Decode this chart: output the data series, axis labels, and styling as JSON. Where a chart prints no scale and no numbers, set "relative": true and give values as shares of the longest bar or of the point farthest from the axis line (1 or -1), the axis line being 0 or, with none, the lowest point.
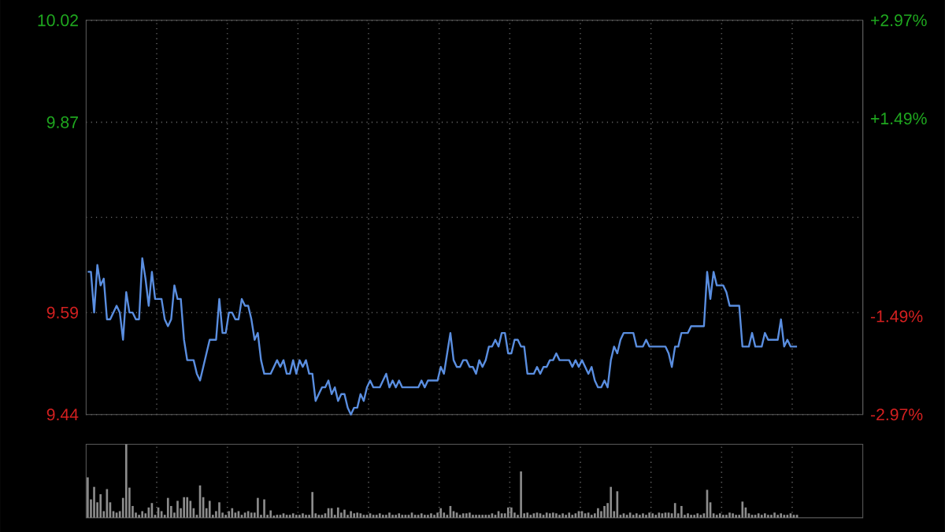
{
  "chart_data": [
    {
      "type": "line",
      "ylim": [
        9.44,
        10.02
      ],
      "y2lim": [
        -2.97,
        2.97
      ],
      "grid": true,
      "yticks": [
        9.44,
        9.59,
        {
          "value": 9.73,
          "label": null
        },
        9.87,
        10.02
      ],
      "y2ticks": [
        {
          "value": -2.97,
          "label": "-2.97%"
        },
        {
          "value": -1.49,
          "label": "-1.49%"
        },
        {
          "value": 1.49,
          "label": "+1.49%"
        },
        {
          "value": 2.97,
          "label": "+2.97%"
        }
      ],
      "categories": [
        null,
        null,
        null,
        null,
        null,
        null,
        null,
        null,
        null,
        null,
        null,
        null,
        null,
        null,
        null,
        null,
        null,
        null,
        null,
        null,
        null,
        null,
        null,
        null,
        null,
        null,
        null,
        null,
        null,
        null,
        null,
        null,
        null,
        null,
        null,
        null,
        null,
        null,
        null,
        null,
        null,
        null,
        null,
        null,
        null,
        null,
        null,
        null,
        null,
        null,
        null,
        null,
        null,
        null,
        null,
        null,
        null,
        null,
        null,
        null,
        null,
        null,
        null,
        null,
        null,
        null,
        null,
        null,
        null,
        null,
        null,
        null,
        null,
        null,
        null,
        null,
        null,
        null,
        null,
        null,
        null,
        null,
        null,
        null,
        null,
        null,
        null,
        null,
        null,
        null,
        null,
        null,
        null,
        null,
        null,
        null,
        null,
        null,
        null,
        null,
        null,
        null,
        null,
        null,
        null,
        null,
        null,
        null,
        null,
        null,
        null,
        null,
        null,
        null,
        null,
        null,
        null,
        null,
        null,
        null,
        null,
        null,
        null,
        null,
        null,
        null,
        null,
        null,
        null,
        null,
        null,
        null,
        null,
        null,
        null,
        null,
        null,
        null,
        null,
        null,
        null,
        null,
        null,
        null,
        null,
        null,
        null,
        null,
        null,
        null,
        null,
        null,
        null,
        null,
        null,
        null,
        null,
        null,
        null,
        null,
        null,
        null,
        null,
        null,
        null,
        null,
        null,
        null,
        null,
        null,
        null,
        null,
        null,
        null,
        null,
        null,
        null,
        null,
        null,
        null,
        null,
        null,
        null,
        null,
        null,
        null,
        null,
        null,
        null,
        null,
        null,
        null,
        null,
        null,
        null,
        null,
        null,
        null,
        null,
        null,
        null,
        null,
        null,
        null,
        null,
        null,
        null,
        null,
        null,
        null,
        null,
        null,
        null,
        null,
        null,
        null,
        null,
        null,
        null,
        null,
        null,
        null,
        null,
        null,
        null,
        null,
        null,
        null,
        null,
        null,
        null,
        null,
        null,
        null,
        null,
        null,
        null,
        null,
        null,
        null,
        null,
        null
      ],
      "series": [
        {
          "color": "#5a8ee0",
          "values": [
            9.65,
            9.65,
            9.59,
            9.66,
            9.63,
            9.64,
            9.58,
            9.58,
            9.59,
            9.6,
            9.59,
            9.55,
            9.62,
            9.59,
            9.59,
            9.58,
            9.58,
            9.67,
            9.64,
            9.6,
            9.65,
            9.61,
            9.61,
            9.61,
            9.58,
            9.57,
            9.58,
            9.63,
            9.61,
            9.61,
            9.55,
            9.52,
            9.52,
            9.52,
            9.5,
            9.49,
            9.51,
            9.53,
            9.55,
            9.55,
            9.55,
            9.61,
            9.56,
            9.56,
            9.59,
            9.59,
            9.58,
            9.58,
            9.61,
            9.6,
            9.6,
            9.58,
            9.55,
            9.56,
            9.52,
            9.5,
            9.5,
            9.5,
            9.51,
            9.52,
            9.51,
            9.52,
            9.5,
            9.5,
            9.52,
            9.5,
            9.52,
            9.51,
            9.52,
            9.5,
            9.5,
            9.46,
            9.47,
            9.48,
            9.48,
            9.49,
            9.47,
            9.48,
            9.46,
            9.47,
            9.47,
            9.45,
            9.44,
            9.45,
            9.45,
            9.47,
            9.46,
            9.48,
            9.49,
            9.48,
            9.48,
            9.48,
            9.49,
            9.5,
            9.48,
            9.49,
            9.48,
            9.49,
            9.48,
            9.48,
            9.48,
            9.48,
            9.48,
            9.48,
            9.49,
            9.48,
            9.49,
            9.49,
            9.49,
            9.49,
            9.51,
            9.5,
            9.53,
            9.56,
            9.52,
            9.51,
            9.51,
            9.52,
            9.52,
            9.51,
            9.51,
            9.5,
            9.52,
            9.51,
            9.52,
            9.54,
            9.54,
            9.55,
            9.54,
            9.56,
            9.56,
            9.53,
            9.53,
            9.55,
            9.55,
            9.54,
            9.54,
            9.5,
            9.5,
            9.5,
            9.51,
            9.5,
            9.51,
            9.51,
            9.52,
            9.52,
            9.53,
            9.52,
            9.52,
            9.52,
            9.52,
            9.51,
            9.52,
            9.51,
            9.52,
            9.51,
            9.5,
            9.51,
            9.49,
            9.48,
            9.48,
            9.49,
            9.48,
            9.52,
            9.54,
            9.53,
            9.55,
            9.56,
            9.56,
            9.56,
            9.56,
            9.54,
            9.54,
            9.54,
            9.55,
            9.54,
            9.54,
            9.54,
            9.54,
            9.54,
            9.54,
            9.53,
            9.51,
            9.54,
            9.54,
            9.56,
            9.56,
            9.56,
            9.57,
            9.57,
            9.57,
            9.57,
            9.57,
            9.65,
            9.61,
            9.65,
            9.63,
            9.63,
            9.63,
            9.62,
            9.6,
            9.6,
            9.6,
            9.6,
            9.54,
            9.54,
            9.54,
            9.56,
            9.54,
            9.54,
            9.54,
            9.56,
            9.55,
            9.55,
            9.55,
            9.55,
            9.58,
            9.54,
            9.55,
            9.54,
            9.54,
            9.54,
            null,
            null,
            null,
            null,
            null,
            null,
            null,
            null,
            null,
            null,
            null,
            null,
            null,
            null,
            null,
            null,
            null,
            null,
            null,
            null
          ]
        }
      ]
    },
    {
      "type": "bar",
      "relative": true,
      "color": "#8c8c8c",
      "grid": "x",
      "categories": [
        null,
        null,
        null,
        null,
        null,
        null,
        null,
        null,
        null,
        null,
        null,
        null,
        null,
        null,
        null,
        null,
        null,
        null,
        null,
        null,
        null,
        null,
        null,
        null,
        null,
        null,
        null,
        null,
        null,
        null,
        null,
        null,
        null,
        null,
        null,
        null,
        null,
        null,
        null,
        null,
        null,
        null,
        null,
        null,
        null,
        null,
        null,
        null,
        null,
        null,
        null,
        null,
        null,
        null,
        null,
        null,
        null,
        null,
        null,
        null,
        null,
        null,
        null,
        null,
        null,
        null,
        null,
        null,
        null,
        null,
        null,
        null,
        null,
        null,
        null,
        null,
        null,
        null,
        null,
        null,
        null,
        null,
        null,
        null,
        null,
        null,
        null,
        null,
        null,
        null,
        null,
        null,
        null,
        null,
        null,
        null,
        null,
        null,
        null,
        null,
        null,
        null,
        null,
        null,
        null,
        null,
        null,
        null,
        null,
        null,
        null,
        null,
        null,
        null,
        null,
        null,
        null,
        null,
        null,
        null,
        null,
        null,
        null,
        null,
        null,
        null,
        null,
        null,
        null,
        null,
        null,
        null,
        null,
        null,
        null,
        null,
        null,
        null,
        null,
        null,
        null,
        null,
        null,
        null,
        null,
        null,
        null,
        null,
        null,
        null,
        null,
        null,
        null,
        null,
        null,
        null,
        null,
        null,
        null,
        null,
        null,
        null,
        null,
        null,
        null,
        null,
        null,
        null,
        null,
        null,
        null,
        null,
        null,
        null,
        null,
        null,
        null,
        null,
        null,
        null,
        null,
        null,
        null,
        null,
        null,
        null,
        null,
        null,
        null,
        null,
        null,
        null,
        null,
        null,
        null,
        null,
        null,
        null,
        null,
        null,
        null,
        null,
        null,
        null,
        null,
        null,
        null,
        null,
        null,
        null,
        null,
        null,
        null,
        null,
        null,
        null,
        null,
        null,
        null,
        null,
        null,
        null,
        null,
        null,
        null,
        null,
        null,
        null,
        null,
        null,
        null,
        null,
        null,
        null,
        null,
        null,
        null,
        null,
        null,
        null,
        null,
        null
      ],
      "values": [
        0.55,
        0.25,
        0.42,
        0.21,
        0.32,
        0.09,
        0.39,
        0.21,
        0.09,
        0.07,
        0.09,
        0.27,
        1,
        0.41,
        0.16,
        0.07,
        0.04,
        0.09,
        0.06,
        0.14,
        0.2,
        0.04,
        0.14,
        0.09,
        0.04,
        0.27,
        0.16,
        0.07,
        0.23,
        0.13,
        0.28,
        0.28,
        0.23,
        0.13,
        0.04,
        0.44,
        0.28,
        0.13,
        0.23,
        0.04,
        0.09,
        0.21,
        0.07,
        0.04,
        0.09,
        0.13,
        0.07,
        0.09,
        0.04,
        0.07,
        0.09,
        0.07,
        0.07,
        0.27,
        0.04,
        0.25,
        0.04,
        0.1,
        0.03,
        0.04,
        0.04,
        0.06,
        0.04,
        0.04,
        0.06,
        0.04,
        0.04,
        0.06,
        0.04,
        0.04,
        0.35,
        0.06,
        0.04,
        0.04,
        0.06,
        0.13,
        0.13,
        0.04,
        0.14,
        0.07,
        0.11,
        0.04,
        0.09,
        0.06,
        0.07,
        0.06,
        0.04,
        0.04,
        0.06,
        0.04,
        0.04,
        0.06,
        0.04,
        0.04,
        0.07,
        0.04,
        0.04,
        0.06,
        0.04,
        0.04,
        0.04,
        0.07,
        0.04,
        0.04,
        0.06,
        0.04,
        0.04,
        0.06,
        0.04,
        0.07,
        0.13,
        0.07,
        0.04,
        0.16,
        0.09,
        0.07,
        0.04,
        0.06,
        0.06,
        0.07,
        0.04,
        0.04,
        0.04,
        0.04,
        0.04,
        0.04,
        0.06,
        0.04,
        0.09,
        0.06,
        0.06,
        0.14,
        0.14,
        0.07,
        0.04,
        0.63,
        0.06,
        0.07,
        0.04,
        0.06,
        0.07,
        0.06,
        0.04,
        0.07,
        0.06,
        0.07,
        0.06,
        0.04,
        0.06,
        0.04,
        0.07,
        0.04,
        0.06,
        0.09,
        0.09,
        0.06,
        0.07,
        0.04,
        0.06,
        0.13,
        0.09,
        0.16,
        0.2,
        0.42,
        0.09,
        0.36,
        0.04,
        0.06,
        0.04,
        0.07,
        0.04,
        0.06,
        0.04,
        0.06,
        0.04,
        0.07,
        0.06,
        0.04,
        0.07,
        0.06,
        0.07,
        0.07,
        0.06,
        0.2,
        0.06,
        0.16,
        0.04,
        0.06,
        0.04,
        0.04,
        0.06,
        0.04,
        0.06,
        0.38,
        0.21,
        0.06,
        0.04,
        0.06,
        0.04,
        0.04,
        0.07,
        0.06,
        0.04,
        0.04,
        0.22,
        0.14,
        0.06,
        0.04,
        0.04,
        0.06,
        0.04,
        0.06,
        0.04,
        0.04,
        0.07,
        0.04,
        0.06,
        0.04,
        0.04,
        0.06,
        0.04,
        0.04,
        null,
        null,
        null,
        null,
        null,
        null,
        null,
        null,
        null,
        null,
        null,
        null,
        null,
        null,
        null,
        null,
        null,
        null,
        null,
        null
      ]
    }
  ]
}
